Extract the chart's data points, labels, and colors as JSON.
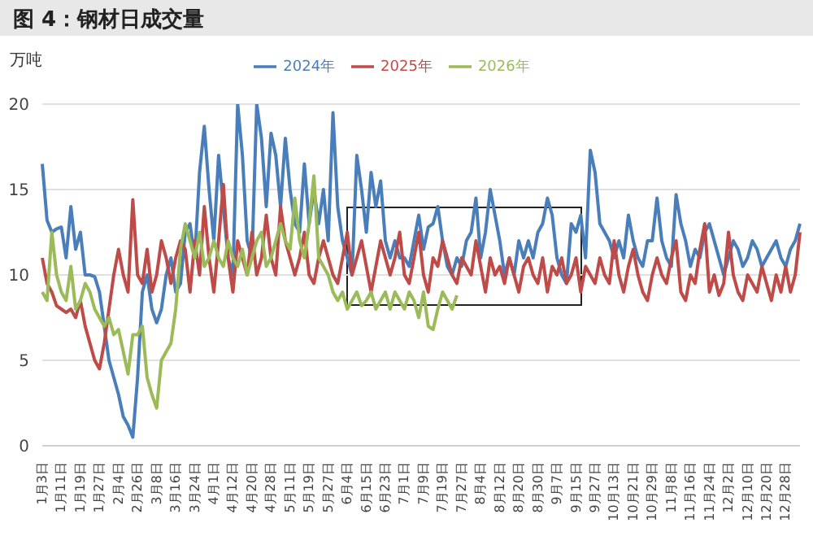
{
  "chart_data": {
    "type": "line",
    "title": "图 4：钢材日成交量",
    "ylabel": "万吨",
    "categories": [
      "1月3日",
      null,
      null,
      null,
      "1月11日",
      null,
      null,
      null,
      "1月19日",
      null,
      null,
      null,
      "1月27日",
      null,
      null,
      null,
      "2月4日",
      null,
      null,
      null,
      "2月26日",
      null,
      null,
      null,
      "3月8日",
      null,
      null,
      null,
      "3月16日",
      null,
      null,
      null,
      "3月24日",
      null,
      null,
      null,
      "4月1日",
      null,
      null,
      null,
      "4月12日",
      null,
      null,
      null,
      "4月20日",
      null,
      null,
      null,
      "4月28日",
      null,
      null,
      null,
      "5月11日",
      null,
      null,
      null,
      "5月19日",
      null,
      null,
      null,
      "5月27日",
      null,
      null,
      null,
      "6月4日",
      null,
      null,
      null,
      "6月15日",
      null,
      null,
      null,
      "6月23日",
      null,
      null,
      null,
      "7月1日",
      null,
      null,
      null,
      "7月9日",
      null,
      null,
      null,
      "7月19日",
      null,
      null,
      null,
      "7月27日",
      null,
      null,
      null,
      "8月4日",
      null,
      null,
      null,
      "8月12日",
      null,
      null,
      null,
      "8月20日",
      null,
      null,
      null,
      "8月30日",
      null,
      null,
      null,
      "9月7日",
      null,
      null,
      null,
      "9月15日",
      null,
      null,
      null,
      "9月27日",
      null,
      null,
      null,
      "10月13日",
      null,
      null,
      null,
      "10月21日",
      null,
      null,
      null,
      "10月29日",
      null,
      null,
      null,
      "11月8日",
      null,
      null,
      null,
      "11月16日",
      null,
      null,
      null,
      "11月24日",
      null,
      null,
      null,
      "12月2日",
      null,
      null,
      null,
      "12月10日",
      null,
      null,
      null,
      "12月20日",
      null,
      null,
      null,
      "12月28日",
      null,
      null,
      null
    ],
    "series": [
      {
        "name": "2024年",
        "color": "#4a7ebb",
        "values": [
          16.5,
          13.2,
          12.5,
          12.7,
          12.8,
          11,
          14,
          11.5,
          12.5,
          10,
          10,
          9.9,
          9,
          7,
          5,
          4,
          3,
          1.7,
          1.2,
          0.5,
          4,
          9,
          10,
          8,
          7.2,
          8,
          10,
          11,
          9,
          9.5,
          12.5,
          13,
          11,
          16,
          18.7,
          15,
          12,
          17,
          14,
          11,
          10,
          20,
          17,
          12,
          11,
          20,
          18,
          14,
          18.3,
          17,
          14,
          18,
          15,
          13,
          12.5,
          16.5,
          13,
          15,
          13,
          15,
          12,
          19.5,
          14,
          12,
          11,
          10,
          17,
          15,
          12.5,
          16,
          14,
          15.5,
          12,
          11,
          12,
          11,
          11,
          10.5,
          12,
          13.5,
          11.5,
          12.8,
          13,
          14,
          12,
          10.5,
          10,
          11,
          10.5,
          12,
          12.5,
          14.5,
          11,
          12.5,
          15,
          13.5,
          12,
          10,
          11,
          10,
          12,
          11,
          12,
          11,
          12.5,
          13,
          14.5,
          13.5,
          11,
          10,
          9.5,
          13,
          12.5,
          13.5,
          11,
          17.3,
          16,
          13,
          12.5,
          12,
          11,
          12,
          11,
          13.5,
          12,
          11,
          10.5,
          12,
          12,
          14.5,
          12,
          11,
          10.5,
          14.7,
          13,
          12,
          10.5,
          11.5,
          11,
          12.5,
          13,
          12,
          11,
          10,
          11,
          12,
          11.5,
          10.5,
          11,
          12,
          11.5,
          10.5,
          11,
          11.5,
          12,
          11,
          10.5,
          11.5,
          12,
          13
        ]
      },
      {
        "name": "2025年",
        "color": "#be4b48",
        "values": [
          11,
          9.5,
          9,
          8.2,
          8,
          7.8,
          8,
          7.5,
          8.5,
          7,
          6,
          5,
          4.5,
          6,
          8,
          10,
          11.5,
          10,
          9,
          14.4,
          10,
          9.5,
          11.5,
          9,
          10,
          12,
          11,
          9.5,
          11,
          12,
          11.5,
          9,
          12,
          10,
          14,
          11,
          9,
          12,
          15.3,
          11,
          9,
          12,
          11,
          10,
          12.5,
          10,
          11,
          13.5,
          11,
          10,
          14,
          12,
          11,
          10,
          11,
          12.5,
          10,
          9.5,
          11,
          12,
          11,
          10,
          9.5,
          11,
          12.5,
          10,
          11,
          12,
          10.5,
          9,
          10.5,
          12,
          11,
          10,
          11,
          12.5,
          10,
          9.5,
          11,
          12.5,
          10,
          9,
          11,
          10.5,
          12,
          11,
          10,
          9.5,
          11,
          10.5,
          10,
          12,
          10.5,
          9,
          11,
          10,
          10.5,
          9.5,
          11,
          10,
          9,
          10.5,
          11,
          10,
          9.5,
          11,
          9,
          10.5,
          10,
          11,
          9.5,
          10,
          11,
          9,
          10.5,
          10,
          9.5,
          11,
          10,
          9.5,
          12,
          10,
          9,
          10.5,
          11.5,
          10,
          9,
          8.5,
          10,
          11,
          10,
          9.5,
          11,
          12,
          9,
          8.5,
          10,
          9.5,
          11.5,
          13,
          9,
          10,
          8.8,
          9.5,
          12.5,
          10,
          9,
          8.5,
          10,
          9.5,
          9,
          10.5,
          9.5,
          8.5,
          10,
          9,
          10.5,
          9,
          10,
          12.5
        ]
      },
      {
        "name": "2026年",
        "color": "#9bbb59",
        "values": [
          9,
          8.5,
          12.5,
          10,
          9,
          8.5,
          10.5,
          8,
          8.5,
          9.5,
          9,
          8,
          7.5,
          7,
          7.5,
          6.5,
          6.8,
          5.5,
          4.2,
          6.5,
          6.5,
          7,
          4,
          3,
          2.2,
          5,
          5.5,
          6,
          8,
          11.5,
          13,
          12,
          11,
          12.5,
          10.5,
          11,
          12,
          11,
          10.5,
          12,
          11,
          10.5,
          11.5,
          10,
          11,
          12,
          12.5,
          10.5,
          11,
          12,
          13,
          12,
          11.5,
          14.5,
          12,
          11,
          13,
          15.8,
          11,
          10.5,
          10,
          9,
          8.5,
          9,
          8,
          8.5,
          9,
          8.2,
          8.5,
          9,
          8,
          8.5,
          9,
          8,
          9,
          8.5,
          8,
          9,
          8.5,
          7.5,
          9,
          7,
          6.8,
          8,
          9,
          8.5,
          8,
          8.8,
          null,
          null,
          null,
          null,
          null,
          null,
          null,
          null,
          null,
          null,
          null,
          null,
          null,
          null,
          null,
          null,
          null,
          null,
          null,
          null,
          null,
          null,
          null,
          null,
          null,
          null,
          null,
          null,
          null,
          null,
          null,
          null,
          null,
          null,
          null,
          null,
          null,
          null,
          null,
          null,
          null,
          null,
          null,
          null,
          null,
          null,
          null,
          null,
          null,
          null,
          null,
          null,
          null,
          null,
          null,
          null,
          null,
          null,
          null,
          null,
          null,
          null,
          null,
          null,
          null,
          null,
          null,
          null,
          null,
          null,
          null,
          null
        ]
      }
    ],
    "ylim": [
      0,
      20
    ],
    "yticks": [
      0,
      5,
      10,
      15,
      20
    ],
    "grid": "y",
    "legend": "top",
    "marker": "none",
    "line_style": "solid"
  }
}
